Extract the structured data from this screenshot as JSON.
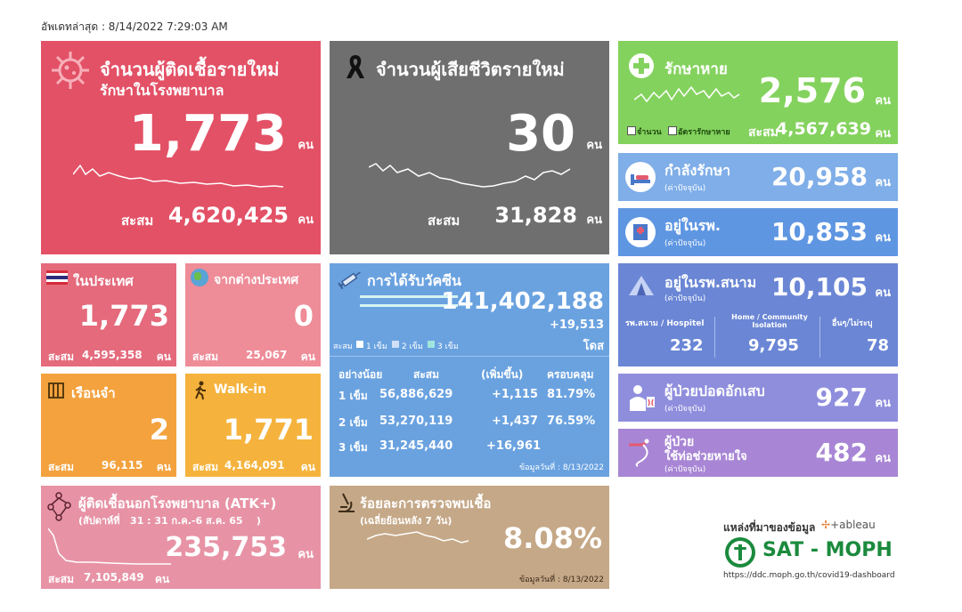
{
  "updated": "อัพเดทล่าสุด : 8/14/2022 7:29:03 AM",
  "unit": "คน",
  "accum_label": "สะสม",
  "new_cases": {
    "title1": "จำนวนผู้ติดเชื้อรายใหม่",
    "title2": "รักษาในโรงพยาบาล",
    "value": "1,773",
    "accum": "4,620,425",
    "color": "#E35166",
    "icon": "virus-icon"
  },
  "deaths": {
    "title": "จำนวนผู้เสียชีวิตรายใหม่",
    "value": "30",
    "accum": "31,828",
    "color": "#6f6f6f",
    "icon": "black-ribbon-icon"
  },
  "recovered": {
    "title": "รักษาหาย",
    "value": "2,576",
    "legend1": "จำนวน",
    "legend2": "อัตรารักษาหาย",
    "accum": "4,567,639",
    "color": "#84D25E",
    "icon": "medical-cross-icon"
  },
  "treating": {
    "title": "กำลังรักษา",
    "sub": "(ค่าปัจจุบัน)",
    "value": "20,958",
    "color": "#7FAEE8",
    "icon": "hospital-bed-icon"
  },
  "in_hospital": {
    "title": "อยู่ในรพ.",
    "sub": "(ค่าปัจจุบัน)",
    "value": "10,853",
    "color": "#5E96E2",
    "icon": "hospital-building-icon"
  },
  "domestic": {
    "title": "ในประเทศ",
    "value": "1,773",
    "accum": "4,595,358",
    "color": "#E46A7C",
    "icon": "thai-flag-icon"
  },
  "abroad": {
    "title": "จากต่างประเทศ",
    "value": "0",
    "accum": "25,067",
    "color": "#EE8C98",
    "icon": "globe-plane-icon"
  },
  "prison": {
    "title": "เรือนจำ",
    "value": "2",
    "accum": "96,115",
    "color": "#F3A23E",
    "icon": "prison-bars-icon"
  },
  "walkin": {
    "title": "Walk-in",
    "value": "1,771",
    "accum": "4,164,091",
    "color": "#F5B33D",
    "icon": "walking-person-icon"
  },
  "vaccine": {
    "title": "การได้รับวัคซีน",
    "total": "141,402,188",
    "increase": "+19,513",
    "dose_unit": "โดส",
    "legend_label": "สะสม",
    "legend_items": [
      "1 เข็ม",
      "2 เข็ม",
      "3 เข็ม"
    ],
    "headers": [
      "อย่างน้อย",
      "สะสม",
      "(เพิ่มขึ้น)",
      "ครอบคลุม"
    ],
    "rows": [
      {
        "dose": "1 เข็ม",
        "accum": "56,886,629",
        "inc": "+1,115",
        "coverage": "81.79%"
      },
      {
        "dose": "2 เข็ม",
        "accum": "53,270,119",
        "inc": "+1,437",
        "coverage": "76.59%"
      },
      {
        "dose": "3 เข็ม",
        "accum": "31,245,440",
        "inc": "+16,961",
        "coverage": ""
      }
    ],
    "footnote": "ข้อมูลวันที่ : 8/13/2022",
    "color": "#6AA2E0",
    "icon": "syringe-icon"
  },
  "field_hospital": {
    "title": "อยู่ในรพ.สนาม",
    "sub": "(ค่าปัจจุบัน)",
    "value": "10,105",
    "col1_label": "รพ.สนาม / Hospitel",
    "col1_value": "232",
    "col2_label": "Home / Community Isolation",
    "col2_value": "9,795",
    "col3_label": "อื่นๆ/ไม่ระบุ",
    "col3_value": "78",
    "color": "#6A86D5",
    "icon": "tent-icon"
  },
  "pneumonia": {
    "title": "ผู้ป่วยปอดอักเสบ",
    "sub": "(ค่าปัจจุบัน)",
    "value": "927",
    "color": "#8F8EDD",
    "icon": "doctor-lungs-icon"
  },
  "ventilator": {
    "title1": "ผู้ป่วย",
    "title2": "ใช้ท่อช่วยหายใจ",
    "sub": "(ค่าปัจจุบัน)",
    "value": "482",
    "color": "#A886D5",
    "icon": "breathing-tube-icon"
  },
  "atk": {
    "title": "ผู้ติดเชื้อนอกโรงพยาบาล (ATK+)",
    "sub": "(สัปดาห์ที่   31 : 31 ก.ค.-6 ส.ค. 65    )",
    "value": "235,753",
    "accum": "7,105,849",
    "color": "#E793A5",
    "icon": "network-icon"
  },
  "positivity": {
    "title": "ร้อยละการตรวจพบเชื้อ",
    "sub": "(เฉลี่ยย้อนหลัง 7 วัน)",
    "value": "8.08%",
    "footnote": "ข้อมูลวันที่ : 8/13/2022",
    "color": "#C5A887",
    "icon": "microscope-icon"
  },
  "source": {
    "label": "แหล่งที่มาของข้อมูล",
    "tableau": "+ableau",
    "org": "SAT - MOPH",
    "url": "https://ddc.moph.go.th/covid19-dashboard"
  }
}
